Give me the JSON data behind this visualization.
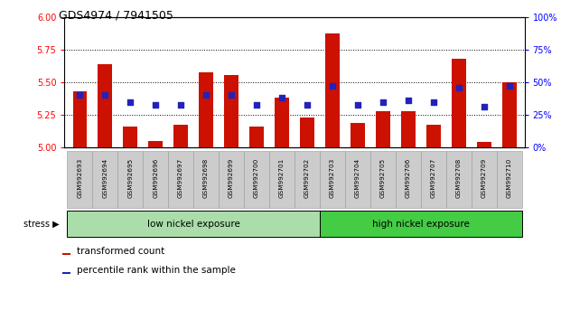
{
  "title": "GDS4974 / 7941505",
  "samples": [
    "GSM992693",
    "GSM992694",
    "GSM992695",
    "GSM992696",
    "GSM992697",
    "GSM992698",
    "GSM992699",
    "GSM992700",
    "GSM992701",
    "GSM992702",
    "GSM992703",
    "GSM992704",
    "GSM992705",
    "GSM992706",
    "GSM992707",
    "GSM992708",
    "GSM992709",
    "GSM992710"
  ],
  "red_values": [
    5.43,
    5.64,
    5.16,
    5.05,
    5.17,
    5.58,
    5.56,
    5.16,
    5.38,
    5.23,
    5.88,
    5.19,
    5.28,
    5.28,
    5.17,
    5.68,
    5.04,
    5.5
  ],
  "blue_values": [
    40,
    40,
    35,
    33,
    33,
    40,
    40,
    33,
    38,
    33,
    47,
    33,
    35,
    36,
    35,
    46,
    31,
    47
  ],
  "ylim_left": [
    5.0,
    6.0
  ],
  "ylim_right": [
    0,
    100
  ],
  "yticks_left": [
    5.0,
    5.25,
    5.5,
    5.75,
    6.0
  ],
  "yticks_right": [
    0,
    25,
    50,
    75,
    100
  ],
  "bar_color": "#cc1100",
  "dot_color": "#2222bb",
  "bar_bottom": 5.0,
  "low_nickel_count": 10,
  "high_nickel_count": 8,
  "low_nickel_color": "#aaddaa",
  "high_nickel_color": "#44cc44",
  "group_label_low": "low nickel exposure",
  "group_label_high": "high nickel exposure",
  "stress_label": "stress",
  "legend_label_red": "transformed count",
  "legend_label_blue": "percentile rank within the sample",
  "tick_label_bg": "#cccccc",
  "tick_label_border": "#999999"
}
